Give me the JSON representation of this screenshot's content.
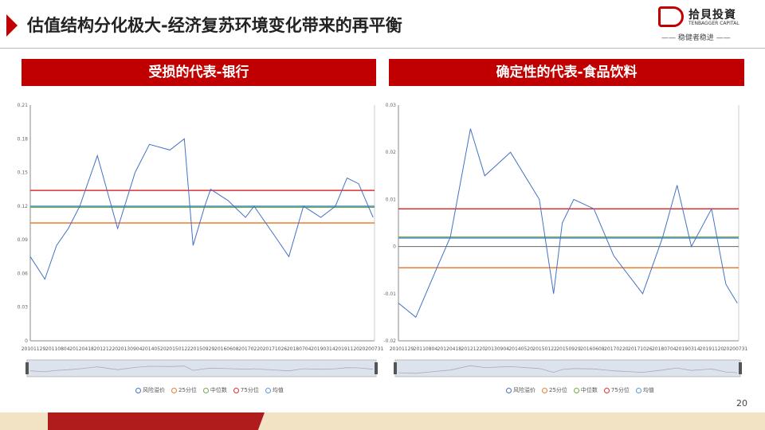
{
  "header": {
    "title": "估值结构分化极大-经济复苏环境变化带来的再平衡",
    "logo_cn": "拾貝投資",
    "logo_en": "TENBAGGER CAPITAL",
    "slogan": "—— 稳健者稳进 ——"
  },
  "page_number": "20",
  "colors": {
    "accent": "#c00000",
    "series": "#4472c4",
    "p25": "#ed7d31",
    "median": "#70ad47",
    "p75": "#e03030",
    "mean": "#5b9bd5"
  },
  "chart_data": [
    {
      "type": "line",
      "title": "受损的代表-银行",
      "x_ticks": [
        "20101129",
        "20110804",
        "20120418",
        "20121220",
        "20130904",
        "20140520",
        "20150122",
        "20150929",
        "20160608",
        "20170220",
        "20171026",
        "20180704",
        "20190314",
        "20191120",
        "20200731"
      ],
      "y_ticks": [
        "0",
        "0.03",
        "0.06",
        "0.09",
        "0.12",
        "0.15",
        "0.18",
        "0.21"
      ],
      "ylim": [
        0,
        0.21
      ],
      "legend": [
        "风险溢价",
        "25分位",
        "中位数",
        "75分位",
        "均值"
      ],
      "levels": {
        "p25": 0.105,
        "median": 0.119,
        "p75": 0.134,
        "mean": 0.12
      },
      "series": {
        "x": [
          "2010-11-29",
          "2011-05-01",
          "2011-09-01",
          "2012-01-01",
          "2012-05-01",
          "2012-11-01",
          "2013-06-01",
          "2013-12-01",
          "2014-05-01",
          "2014-12-01",
          "2015-05-01",
          "2015-08-01",
          "2015-12-01",
          "2016-02-01",
          "2016-08-01",
          "2017-02-01",
          "2017-05-01",
          "2018-01-01",
          "2018-05-01",
          "2018-10-01",
          "2019-04-01",
          "2019-09-01",
          "2020-01-01",
          "2020-05-01",
          "2020-09-30"
        ],
        "y": [
          0.075,
          0.055,
          0.085,
          0.1,
          0.12,
          0.165,
          0.1,
          0.15,
          0.175,
          0.17,
          0.18,
          0.085,
          0.12,
          0.135,
          0.125,
          0.11,
          0.12,
          0.09,
          0.075,
          0.12,
          0.11,
          0.12,
          0.145,
          0.14,
          0.11
        ]
      }
    },
    {
      "type": "line",
      "title": "确定性的代表-食品饮料",
      "x_ticks": [
        "20101129",
        "20110804",
        "20120418",
        "20121220",
        "20130904",
        "20140520",
        "20150122",
        "20150929",
        "20160608",
        "20170220",
        "20171026",
        "20180704",
        "20190314",
        "20191120",
        "20200731"
      ],
      "y_ticks": [
        "-0.02",
        "-0.01",
        "0",
        "0.01",
        "0.02",
        "0.03"
      ],
      "ylim": [
        -0.02,
        0.03
      ],
      "legend": [
        "风险溢价",
        "25分位",
        "中位数",
        "75分位",
        "均值"
      ],
      "levels": {
        "p25": -0.0045,
        "median": 0.002,
        "p75": 0.008,
        "mean": 0.0018
      },
      "series": {
        "x": [
          "2010-11-29",
          "2011-06-01",
          "2012-01-01",
          "2012-06-01",
          "2013-01-01",
          "2013-06-01",
          "2014-03-01",
          "2015-01-01",
          "2015-06-01",
          "2015-09-01",
          "2016-01-01",
          "2016-08-01",
          "2017-03-01",
          "2018-01-01",
          "2018-08-01",
          "2019-01-01",
          "2019-06-01",
          "2020-01-01",
          "2020-06-01",
          "2020-09-30"
        ],
        "y": [
          -0.012,
          -0.015,
          -0.005,
          0.002,
          0.025,
          0.015,
          0.02,
          0.01,
          -0.01,
          0.005,
          0.01,
          0.008,
          -0.002,
          -0.01,
          0.002,
          0.013,
          0.0,
          0.008,
          -0.008,
          -0.012
        ]
      }
    }
  ]
}
